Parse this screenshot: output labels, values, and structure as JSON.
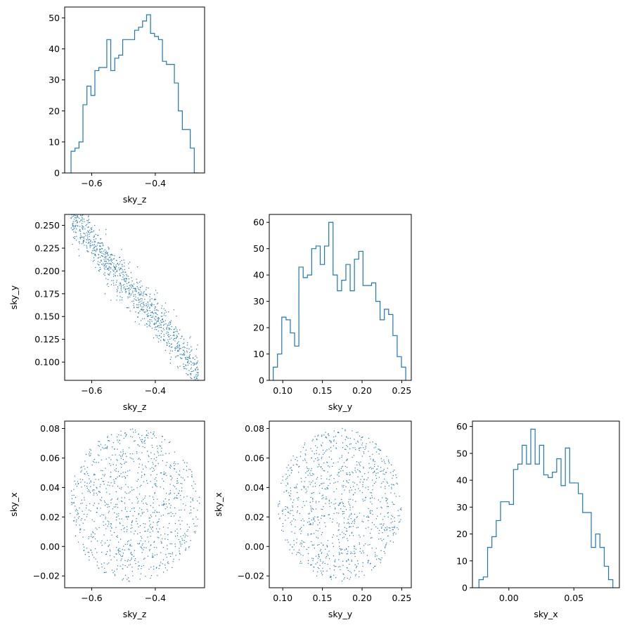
{
  "chart_data": [
    {
      "id": "hist-sky-z",
      "type": "histogram",
      "xlabel": "sky_z",
      "xlim": [
        -0.685,
        -0.245
      ],
      "ylim": [
        0,
        53.5
      ],
      "xticks": [
        -0.6,
        -0.4
      ],
      "xtick_labels": [
        "−0.6",
        "−0.4"
      ],
      "yticks": [
        0,
        10,
        20,
        30,
        40,
        50
      ],
      "ytick_labels": [
        "0",
        "10",
        "20",
        "30",
        "40",
        "50"
      ],
      "bin_edges_range": [
        -0.665,
        -0.265
      ],
      "counts": [
        7,
        8,
        10,
        22,
        28,
        25,
        33,
        34,
        34,
        43,
        33,
        37,
        38,
        43,
        43,
        43,
        46,
        47,
        49,
        51,
        45,
        44,
        43,
        36,
        35,
        35,
        29,
        20,
        14,
        14,
        8,
        0
      ],
      "color": "#1f77b4"
    },
    {
      "id": "scatter-z-y",
      "type": "scatter",
      "xlabel": "sky_z",
      "ylabel": "sky_y",
      "xlim": [
        -0.685,
        -0.245
      ],
      "ylim": [
        0.08,
        0.262
      ],
      "xticks": [
        -0.6,
        -0.4
      ],
      "xtick_labels": [
        "−0.6",
        "−0.4"
      ],
      "yticks": [
        0.1,
        0.125,
        0.15,
        0.175,
        0.2,
        0.225,
        0.25
      ],
      "ytick_labels": [
        "0.100",
        "0.125",
        "0.150",
        "0.175",
        "0.200",
        "0.225",
        "0.250"
      ],
      "n_points": 1000,
      "relation": {
        "slope": -0.42,
        "intercept": -0.02,
        "residual_sd": 0.012
      },
      "color": "#1f77b4"
    },
    {
      "id": "hist-sky-y",
      "type": "histogram",
      "xlabel": "sky_y",
      "xlim": [
        0.083,
        0.262
      ],
      "ylim": [
        0,
        63
      ],
      "xticks": [
        0.1,
        0.15,
        0.2,
        0.25
      ],
      "xtick_labels": [
        "0.10",
        "0.15",
        "0.20",
        "0.25"
      ],
      "yticks": [
        0,
        10,
        20,
        30,
        40,
        50,
        60
      ],
      "ytick_labels": [
        "0",
        "10",
        "20",
        "30",
        "40",
        "50",
        "60"
      ],
      "bin_edges_range": [
        0.088,
        0.255
      ],
      "counts": [
        5,
        10,
        24,
        23,
        18,
        13,
        43,
        39,
        40,
        50,
        51,
        44,
        51,
        60,
        40,
        34,
        38,
        44,
        34,
        46,
        49,
        36,
        36,
        37,
        30,
        23,
        27,
        25,
        17,
        9,
        5
      ],
      "color": "#1f77b4"
    },
    {
      "id": "scatter-z-x",
      "type": "scatter",
      "xlabel": "sky_z",
      "ylabel": "sky_x",
      "xlim": [
        -0.685,
        -0.245
      ],
      "ylim": [
        -0.028,
        0.085
      ],
      "xticks": [
        -0.6,
        -0.4
      ],
      "xtick_labels": [
        "−0.6",
        "−0.4"
      ],
      "yticks": [
        -0.02,
        0.0,
        0.02,
        0.04,
        0.06,
        0.08
      ],
      "ytick_labels": [
        "−0.02",
        "0.00",
        "0.02",
        "0.04",
        "0.06",
        "0.08"
      ],
      "n_points": 1000,
      "ellipse": {
        "cx": -0.465,
        "cy": 0.028,
        "rx": 0.205,
        "ry": 0.052
      },
      "color": "#1f77b4"
    },
    {
      "id": "scatter-y-x",
      "type": "scatter",
      "xlabel": "sky_y",
      "ylabel": "sky_x",
      "xlim": [
        0.083,
        0.262
      ],
      "ylim": [
        -0.028,
        0.085
      ],
      "xticks": [
        0.1,
        0.15,
        0.2,
        0.25
      ],
      "xtick_labels": [
        "0.10",
        "0.15",
        "0.20",
        "0.25"
      ],
      "yticks": [
        -0.02,
        0.0,
        0.02,
        0.04,
        0.06,
        0.08
      ],
      "ytick_labels": [
        "−0.02",
        "0.00",
        "0.02",
        "0.04",
        "0.06",
        "0.08"
      ],
      "n_points": 1000,
      "ellipse": {
        "cx": 0.172,
        "cy": 0.028,
        "rx": 0.078,
        "ry": 0.052
      },
      "color": "#1f77b4"
    },
    {
      "id": "hist-sky-x",
      "type": "histogram",
      "xlabel": "sky_x",
      "xlim": [
        -0.028,
        0.085
      ],
      "ylim": [
        0,
        62
      ],
      "xticks": [
        0.0,
        0.05
      ],
      "xtick_labels": [
        "0.00",
        "0.05"
      ],
      "yticks": [
        0,
        10,
        20,
        30,
        40,
        50,
        60
      ],
      "ytick_labels": [
        "0",
        "10",
        "20",
        "30",
        "40",
        "50",
        "60"
      ],
      "bin_edges_range": [
        -0.023,
        0.08
      ],
      "counts": [
        3,
        4,
        15,
        19,
        25,
        32,
        32,
        31,
        44,
        46,
        53,
        46,
        59,
        46,
        53,
        42,
        41,
        43,
        48,
        38,
        52,
        39,
        39,
        35,
        28,
        28,
        15,
        20,
        15,
        8,
        3
      ],
      "color": "#1f77b4"
    }
  ]
}
